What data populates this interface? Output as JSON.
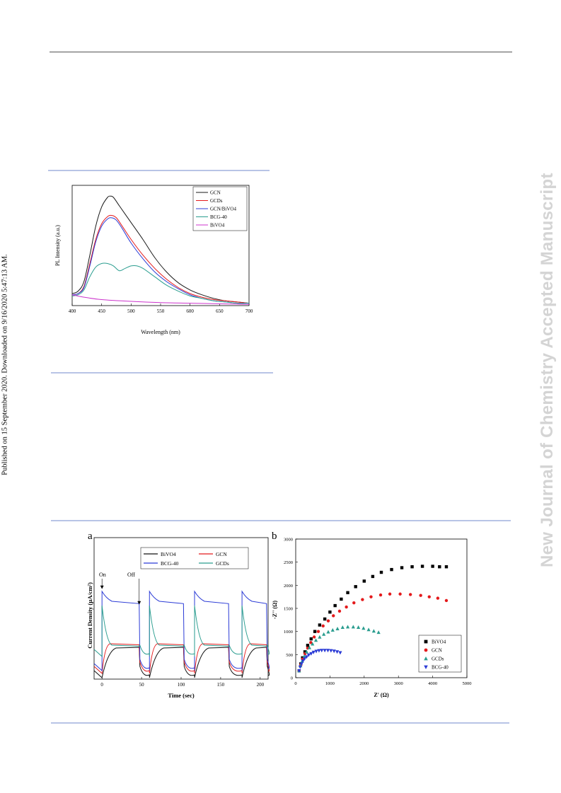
{
  "sidebar": {
    "published": "Published on 15 September 2020. Downloaded on 9/16/2020 5:47:13 AM.",
    "watermark": "New Journal of Chemistry Accepted Manuscript"
  },
  "colors": {
    "rule": "#b8c4e6",
    "black": "#000000",
    "red": "#e41a1c",
    "blue": "#2b3bd6",
    "teal": "#2a9d8f",
    "magenta": "#cc33cc"
  },
  "chart_data": [
    {
      "type": "line",
      "xlabel": "Wavelength (nm)",
      "ylabel": "PL Intensity (a.u.)",
      "xlim": [
        400,
        700
      ],
      "xticks": [
        "400",
        "450",
        "500",
        "550",
        "600",
        "650",
        "700"
      ],
      "legend_position": "top-right",
      "series": [
        {
          "name": "GCN",
          "color": "#1a1a1a",
          "x": [
            400,
            410,
            420,
            430,
            440,
            450,
            460,
            465,
            470,
            480,
            490,
            500,
            520,
            540,
            560,
            580,
            600,
            620,
            640,
            660,
            680,
            700
          ],
          "y": [
            0.1,
            0.12,
            0.2,
            0.42,
            0.66,
            0.82,
            0.9,
            0.91,
            0.9,
            0.83,
            0.76,
            0.69,
            0.55,
            0.4,
            0.28,
            0.19,
            0.13,
            0.09,
            0.06,
            0.04,
            0.03,
            0.02
          ]
        },
        {
          "name": "GCDs",
          "color": "#e41a1c",
          "x": [
            400,
            410,
            420,
            430,
            440,
            450,
            460,
            467,
            475,
            485,
            500,
            520,
            540,
            560,
            580,
            600,
            620,
            640,
            660,
            680,
            700
          ],
          "y": [
            0.09,
            0.1,
            0.16,
            0.35,
            0.55,
            0.68,
            0.74,
            0.75,
            0.73,
            0.66,
            0.55,
            0.42,
            0.31,
            0.22,
            0.15,
            0.1,
            0.07,
            0.05,
            0.04,
            0.03,
            0.02
          ]
        },
        {
          "name": "GCN/BiVO4",
          "color": "#2b3bd6",
          "x": [
            400,
            410,
            420,
            430,
            440,
            450,
            460,
            467,
            475,
            485,
            500,
            520,
            540,
            560,
            580,
            600,
            620,
            640,
            660,
            680,
            700
          ],
          "y": [
            0.09,
            0.1,
            0.15,
            0.33,
            0.53,
            0.66,
            0.72,
            0.73,
            0.71,
            0.64,
            0.52,
            0.39,
            0.28,
            0.2,
            0.14,
            0.09,
            0.06,
            0.04,
            0.03,
            0.02,
            0.02
          ]
        },
        {
          "name": "BCG-40",
          "color": "#2a9d8f",
          "x": [
            400,
            410,
            420,
            430,
            440,
            450,
            460,
            470,
            480,
            490,
            500,
            510,
            520,
            540,
            560,
            580,
            600,
            620,
            640,
            660,
            680,
            700
          ],
          "y": [
            0.08,
            0.09,
            0.13,
            0.24,
            0.32,
            0.35,
            0.35,
            0.33,
            0.29,
            0.31,
            0.33,
            0.33,
            0.31,
            0.24,
            0.17,
            0.12,
            0.08,
            0.06,
            0.04,
            0.03,
            0.02,
            0.02
          ]
        },
        {
          "name": "BiVO4",
          "color": "#cc33cc",
          "x": [
            400,
            420,
            450,
            500,
            550,
            600,
            650,
            700
          ],
          "y": [
            0.09,
            0.07,
            0.05,
            0.035,
            0.025,
            0.02,
            0.015,
            0.01
          ]
        }
      ]
    },
    {
      "type": "line",
      "panel_label": "a",
      "xlabel": "Time (sec)",
      "ylabel": "Current Density (μA/cm²)",
      "xlim": [
        -10,
        210
      ],
      "xticks": [
        "0",
        "50",
        "100",
        "150",
        "200"
      ],
      "annotations": [
        "On",
        "Off"
      ],
      "legend_position": "top",
      "series": [
        {
          "name": "BiVO4",
          "color": "#111111"
        },
        {
          "name": "GCN",
          "color": "#e41a1c"
        },
        {
          "name": "BCG-40",
          "color": "#2b3bd6"
        },
        {
          "name": "GCDs",
          "color": "#2a9d8f"
        }
      ],
      "cycles_on": [
        0,
        60,
        117,
        177
      ],
      "cycles_off": [
        47,
        103,
        160,
        210
      ]
    },
    {
      "type": "scatter",
      "panel_label": "b",
      "xlabel": "Z' (Ω)",
      "ylabel": "-Z'' (Ω)",
      "xlim": [
        0,
        5000
      ],
      "ylim": [
        0,
        3000
      ],
      "xticks": [
        "0",
        "1000",
        "2000",
        "3000",
        "4000",
        "5000"
      ],
      "yticks": [
        "0",
        "500",
        "1000",
        "1500",
        "2000",
        "2500",
        "3000"
      ],
      "legend_position": "bottom-right",
      "series": [
        {
          "name": "BiVO4",
          "marker": "square",
          "color": "#000000",
          "x": [
            100,
            150,
            200,
            270,
            350,
            450,
            560,
            700,
            850,
            1000,
            1150,
            1330,
            1520,
            1750,
            2000,
            2250,
            2500,
            2800,
            3100,
            3400,
            3700,
            4000,
            4200,
            4400
          ],
          "y": [
            150,
            300,
            430,
            560,
            700,
            840,
            1000,
            1140,
            1270,
            1420,
            1560,
            1700,
            1840,
            1970,
            2090,
            2190,
            2280,
            2340,
            2380,
            2400,
            2410,
            2410,
            2400,
            2400
          ]
        },
        {
          "name": "GCN",
          "marker": "circle",
          "color": "#e41a1c",
          "x": [
            100,
            150,
            200,
            270,
            350,
            440,
            540,
            660,
            800,
            950,
            1100,
            1280,
            1480,
            1700,
            1950,
            2200,
            2480,
            2750,
            3050,
            3350,
            3650,
            3900,
            4150,
            4400
          ],
          "y": [
            150,
            280,
            400,
            520,
            640,
            760,
            880,
            1000,
            1120,
            1230,
            1340,
            1440,
            1530,
            1620,
            1690,
            1750,
            1790,
            1810,
            1810,
            1800,
            1780,
            1750,
            1720,
            1670
          ]
        },
        {
          "name": "GCDs",
          "marker": "triangle-up",
          "color": "#2a9d8f",
          "x": [
            100,
            140,
            190,
            250,
            320,
            400,
            490,
            590,
            700,
            820,
            950,
            1080,
            1220,
            1370,
            1520,
            1680,
            1830,
            1980,
            2130,
            2280,
            2420
          ],
          "y": [
            150,
            260,
            360,
            460,
            560,
            650,
            730,
            810,
            880,
            940,
            990,
            1030,
            1060,
            1090,
            1100,
            1100,
            1090,
            1070,
            1040,
            1010,
            980
          ]
        },
        {
          "name": "BCG-40",
          "marker": "triangle-down",
          "color": "#2b3bd6",
          "x": [
            100,
            130,
            170,
            210,
            260,
            320,
            380,
            450,
            520,
            600,
            680,
            760,
            850,
            940,
            1030,
            1120,
            1210,
            1300
          ],
          "y": [
            150,
            230,
            300,
            360,
            410,
            450,
            490,
            520,
            550,
            570,
            585,
            590,
            590,
            590,
            585,
            575,
            560,
            540
          ]
        }
      ]
    }
  ]
}
